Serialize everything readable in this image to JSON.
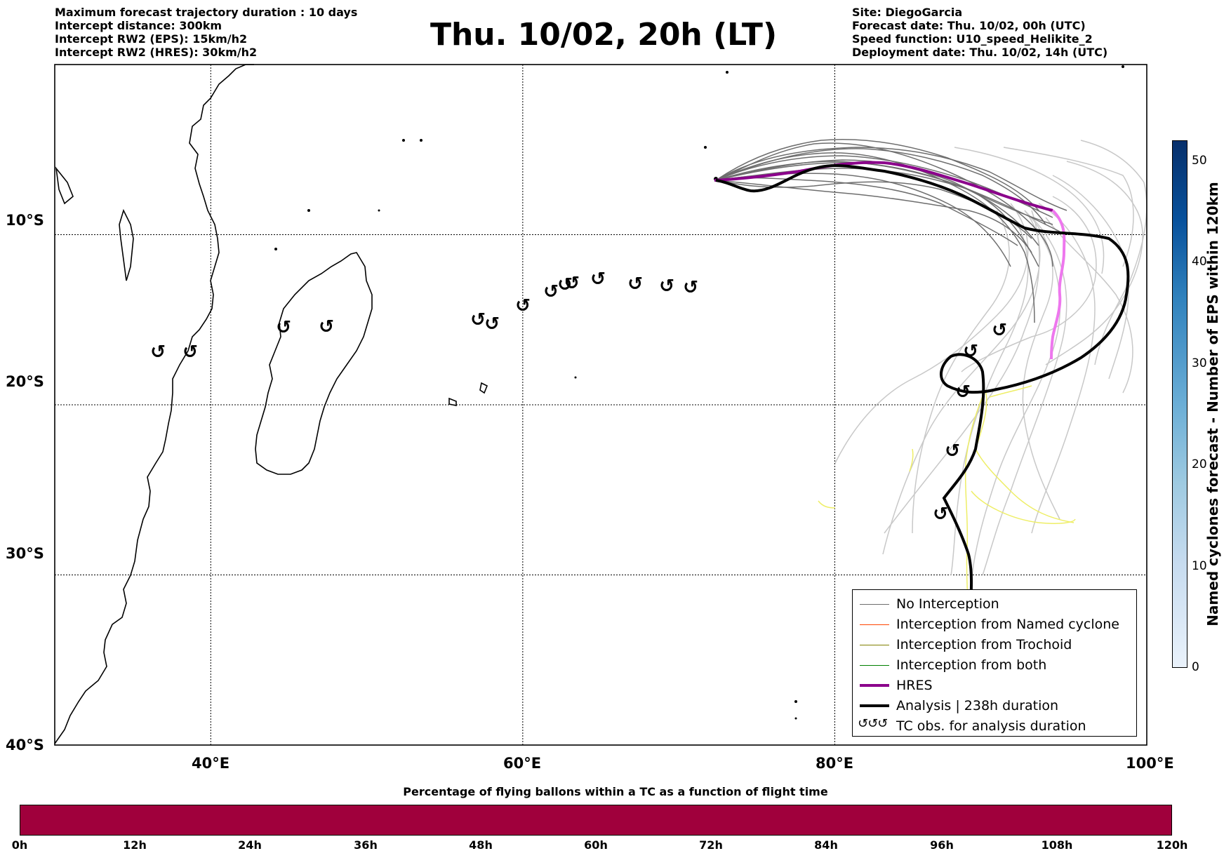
{
  "header": {
    "left_lines": [
      "Maximum forecast trajectory duration : 10 days",
      "Intercept distance: 300km",
      "Intercept RW2 (EPS):  15km/h2",
      "Intercept RW2 (HRES): 30km/h2"
    ],
    "title": "Thu. 10/02, 20h (LT)",
    "right_lines": [
      "Site: DiegoGarcia",
      "Forecast date: Thu. 10/02, 00h (UTC)",
      "Speed function: U10_speed_Helikite_2",
      "Deployment date: Thu. 10/02, 14h (UTC)"
    ]
  },
  "map": {
    "lon_labels": [
      "40°E",
      "60°E",
      "80°E",
      "100°E"
    ],
    "lat_labels": [
      "10°S",
      "20°S",
      "30°S",
      "40°S"
    ],
    "lon_range": [
      30,
      100
    ],
    "lat_range": [
      -40,
      0
    ],
    "colors": {
      "no_interception": "#6e6e6e",
      "faint_members": "#c8c8c8",
      "named_cyclone": "#ff4500",
      "trochoid": "#808000",
      "both": "#008000",
      "hres": "#8b008b",
      "hres_late": "#ee77ee",
      "analysis": "#000000",
      "yellow_tracks": "#eeee66"
    }
  },
  "legend": {
    "items": [
      {
        "label": "No Interception",
        "color": "#6e6e6e"
      },
      {
        "label": "Interception from Named cyclone",
        "color": "#ff4500"
      },
      {
        "label": "Interception from Trochoid",
        "color": "#808000"
      },
      {
        "label": "Interception from both",
        "color": "#008000"
      },
      {
        "label": "HRES",
        "color": "#8b008b"
      },
      {
        "label": "Analysis | 238h duration",
        "color": "#000000"
      },
      {
        "label": "TC obs. for analysis duration",
        "color": "#000000"
      }
    ],
    "tc_symbol": "↺↺↺"
  },
  "colorbar_right": {
    "label": "Named cyclones forecast - Number of EPS within 120km",
    "ticks": [
      "0",
      "10",
      "20",
      "30",
      "40",
      "50"
    ]
  },
  "colorbar_bottom": {
    "title": "Percentage of flying ballons within a TC as a function of flight time",
    "ticks": [
      "0h",
      "12h",
      "24h",
      "36h",
      "48h",
      "60h",
      "72h",
      "84h",
      "96h",
      "108h",
      "120h"
    ],
    "fill_color": "#a0003c"
  }
}
